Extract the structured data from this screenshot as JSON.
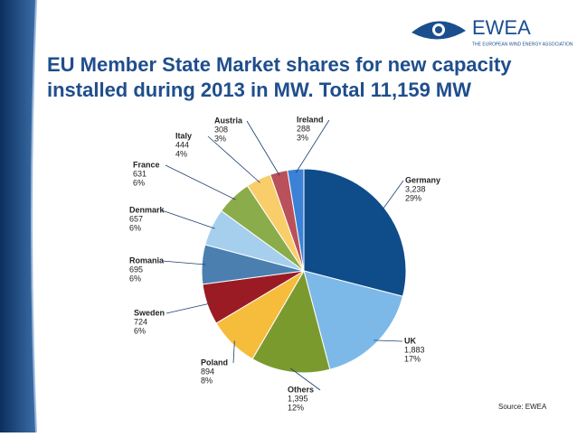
{
  "logo": {
    "name": "EWEA",
    "tagline": "THE EUROPEAN WIND ENERGY ASSOCIATION"
  },
  "chart_data": {
    "type": "pie",
    "title": "EU Member State Market shares for new capacity installed during 2013 in MW. Total 11,159 MW",
    "categories": [
      "Germany",
      "UK",
      "Others",
      "Poland",
      "Sweden",
      "Romania",
      "Denmark",
      "France",
      "Italy",
      "Austria",
      "Ireland"
    ],
    "values": [
      3238,
      1883,
      1395,
      894,
      724,
      695,
      657,
      631,
      444,
      308,
      288
    ],
    "value_labels": [
      "3,238",
      "1,883",
      "1,395",
      "894",
      "724",
      "695",
      "657",
      "631",
      "444",
      "308",
      "288"
    ],
    "percents": [
      29,
      17,
      12,
      8,
      6,
      6,
      6,
      6,
      4,
      3,
      3
    ],
    "percent_labels": [
      "29%",
      "17%",
      "12%",
      "8%",
      "6%",
      "6%",
      "6%",
      "6%",
      "4%",
      "3%",
      "3%"
    ],
    "colors": [
      "#0f4c8a",
      "#7cb9e8",
      "#7a9a2e",
      "#f6bc3c",
      "#9b1b25",
      "#4a7fb0",
      "#a6cfee",
      "#8aac4a",
      "#f9cd6a",
      "#b9505a",
      "#3b82d6"
    ],
    "source": "Source: EWEA"
  }
}
